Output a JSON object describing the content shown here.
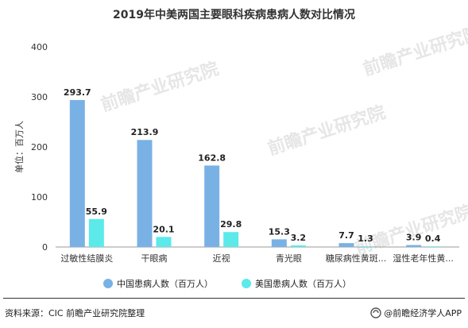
{
  "title": "2019年中美两国主要眼科疾病患病人数对比情况",
  "source": "资料来源：CIC 前瞻产业研究院整理",
  "brand": "@前瞻经济学人APP",
  "watermark": "前瞻产业研究院",
  "colors": {
    "china": "#7ab1e5",
    "usa": "#5ce9ea"
  },
  "chart_data": {
    "type": "bar",
    "categories": [
      "过敏性结膜炎",
      "干眼病",
      "近视",
      "青光眼",
      "糖尿病性黄斑...",
      "湿性老年性黄..."
    ],
    "series": [
      {
        "name": "中国患病人数（百万人）",
        "values": [
          293.7,
          213.9,
          162.8,
          15.3,
          7.7,
          3.9
        ],
        "labels": [
          "293.7",
          "213.9",
          "162.8",
          "15.3",
          "7.7",
          "3.9"
        ]
      },
      {
        "name": "美国患病人数（百万人）",
        "values": [
          55.9,
          20.1,
          29.8,
          3.2,
          1.3,
          0.4
        ],
        "labels": [
          "55.9",
          "20.1",
          "29.8",
          "3.2",
          "1.3",
          "0.4"
        ]
      }
    ],
    "ylabel": "单位：百万人",
    "ylim": [
      0,
      400
    ],
    "yticks": [
      "0",
      "100",
      "200",
      "300",
      "400"
    ],
    "grid": false,
    "legend": "bottom"
  }
}
